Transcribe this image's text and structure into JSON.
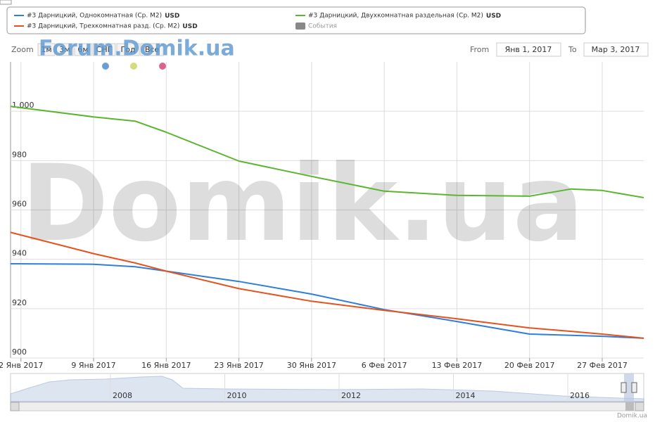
{
  "chart_data": {
    "type": "line",
    "unit": "USD",
    "events_label": "События",
    "zoom_label": "Zoom",
    "zoom_buttons": [
      "1м",
      "3м",
      "6м",
      "СНГ",
      "Год",
      "Все"
    ],
    "from_label": "From",
    "from_value": "Янв 1, 2017",
    "to_label": "To",
    "to_value": "Мар 3, 2017",
    "watermark_small": "Forum.Domik.ua",
    "watermark_big": "Domik.ua",
    "credit": "Domik.ua",
    "navigator_years": [
      "2008",
      "2010",
      "2012",
      "2014",
      "2016"
    ],
    "xlim": [
      "2017-01-01",
      "2017-03-03"
    ],
    "xticks": [
      {
        "value": "2017-01-02",
        "label": "2 Янв 2017"
      },
      {
        "value": "2017-01-09",
        "label": "9 Янв 2017"
      },
      {
        "value": "2017-01-16",
        "label": "16 Янв 2017"
      },
      {
        "value": "2017-01-23",
        "label": "23 Янв 2017"
      },
      {
        "value": "2017-01-30",
        "label": "30 Янв 2017"
      },
      {
        "value": "2017-02-06",
        "label": "6 Фев 2017"
      },
      {
        "value": "2017-02-13",
        "label": "13 Фев 2017"
      },
      {
        "value": "2017-02-20",
        "label": "20 Фев 2017"
      },
      {
        "value": "2017-02-27",
        "label": "27 Фев 2017"
      }
    ],
    "ylim": [
      900,
      1020
    ],
    "yticks": [
      900,
      920,
      940,
      960,
      980,
      {
        "value": 1000,
        "label": "1,000"
      }
    ],
    "grid": true,
    "x": [
      "2017-01-01",
      "2017-01-09",
      "2017-01-13",
      "2017-01-16",
      "2017-01-23",
      "2017-01-30",
      "2017-02-06",
      "2017-02-13",
      "2017-02-20",
      "2017-02-24",
      "2017-02-27",
      "2017-03-03"
    ],
    "series": [
      {
        "name": "#3 Дарницкий, Однокомнатная (Ср. M2)",
        "color": "#2f7ed8",
        "values": [
          938.2,
          938,
          937,
          935.2,
          931,
          925.9,
          919.6,
          914.8,
          909.7,
          909.2,
          908.8,
          908
        ]
      },
      {
        "name": "#3 Дарницкий, Трехкомнатная разд. (Ср. M2)",
        "color": "#e4531f",
        "values": [
          950.9,
          942.3,
          938.5,
          935.2,
          928.1,
          923,
          919.3,
          915.9,
          912.2,
          910.8,
          909.7,
          908
        ]
      },
      {
        "name": "#3 Дарницкий, Двухкомнатная раздельная (Ср. M2)",
        "color": "#5cb531",
        "values": [
          1002,
          997.7,
          996,
          991.5,
          979.8,
          973.6,
          967.6,
          965.9,
          965.6,
          968.5,
          967.9,
          965
        ]
      }
    ]
  }
}
